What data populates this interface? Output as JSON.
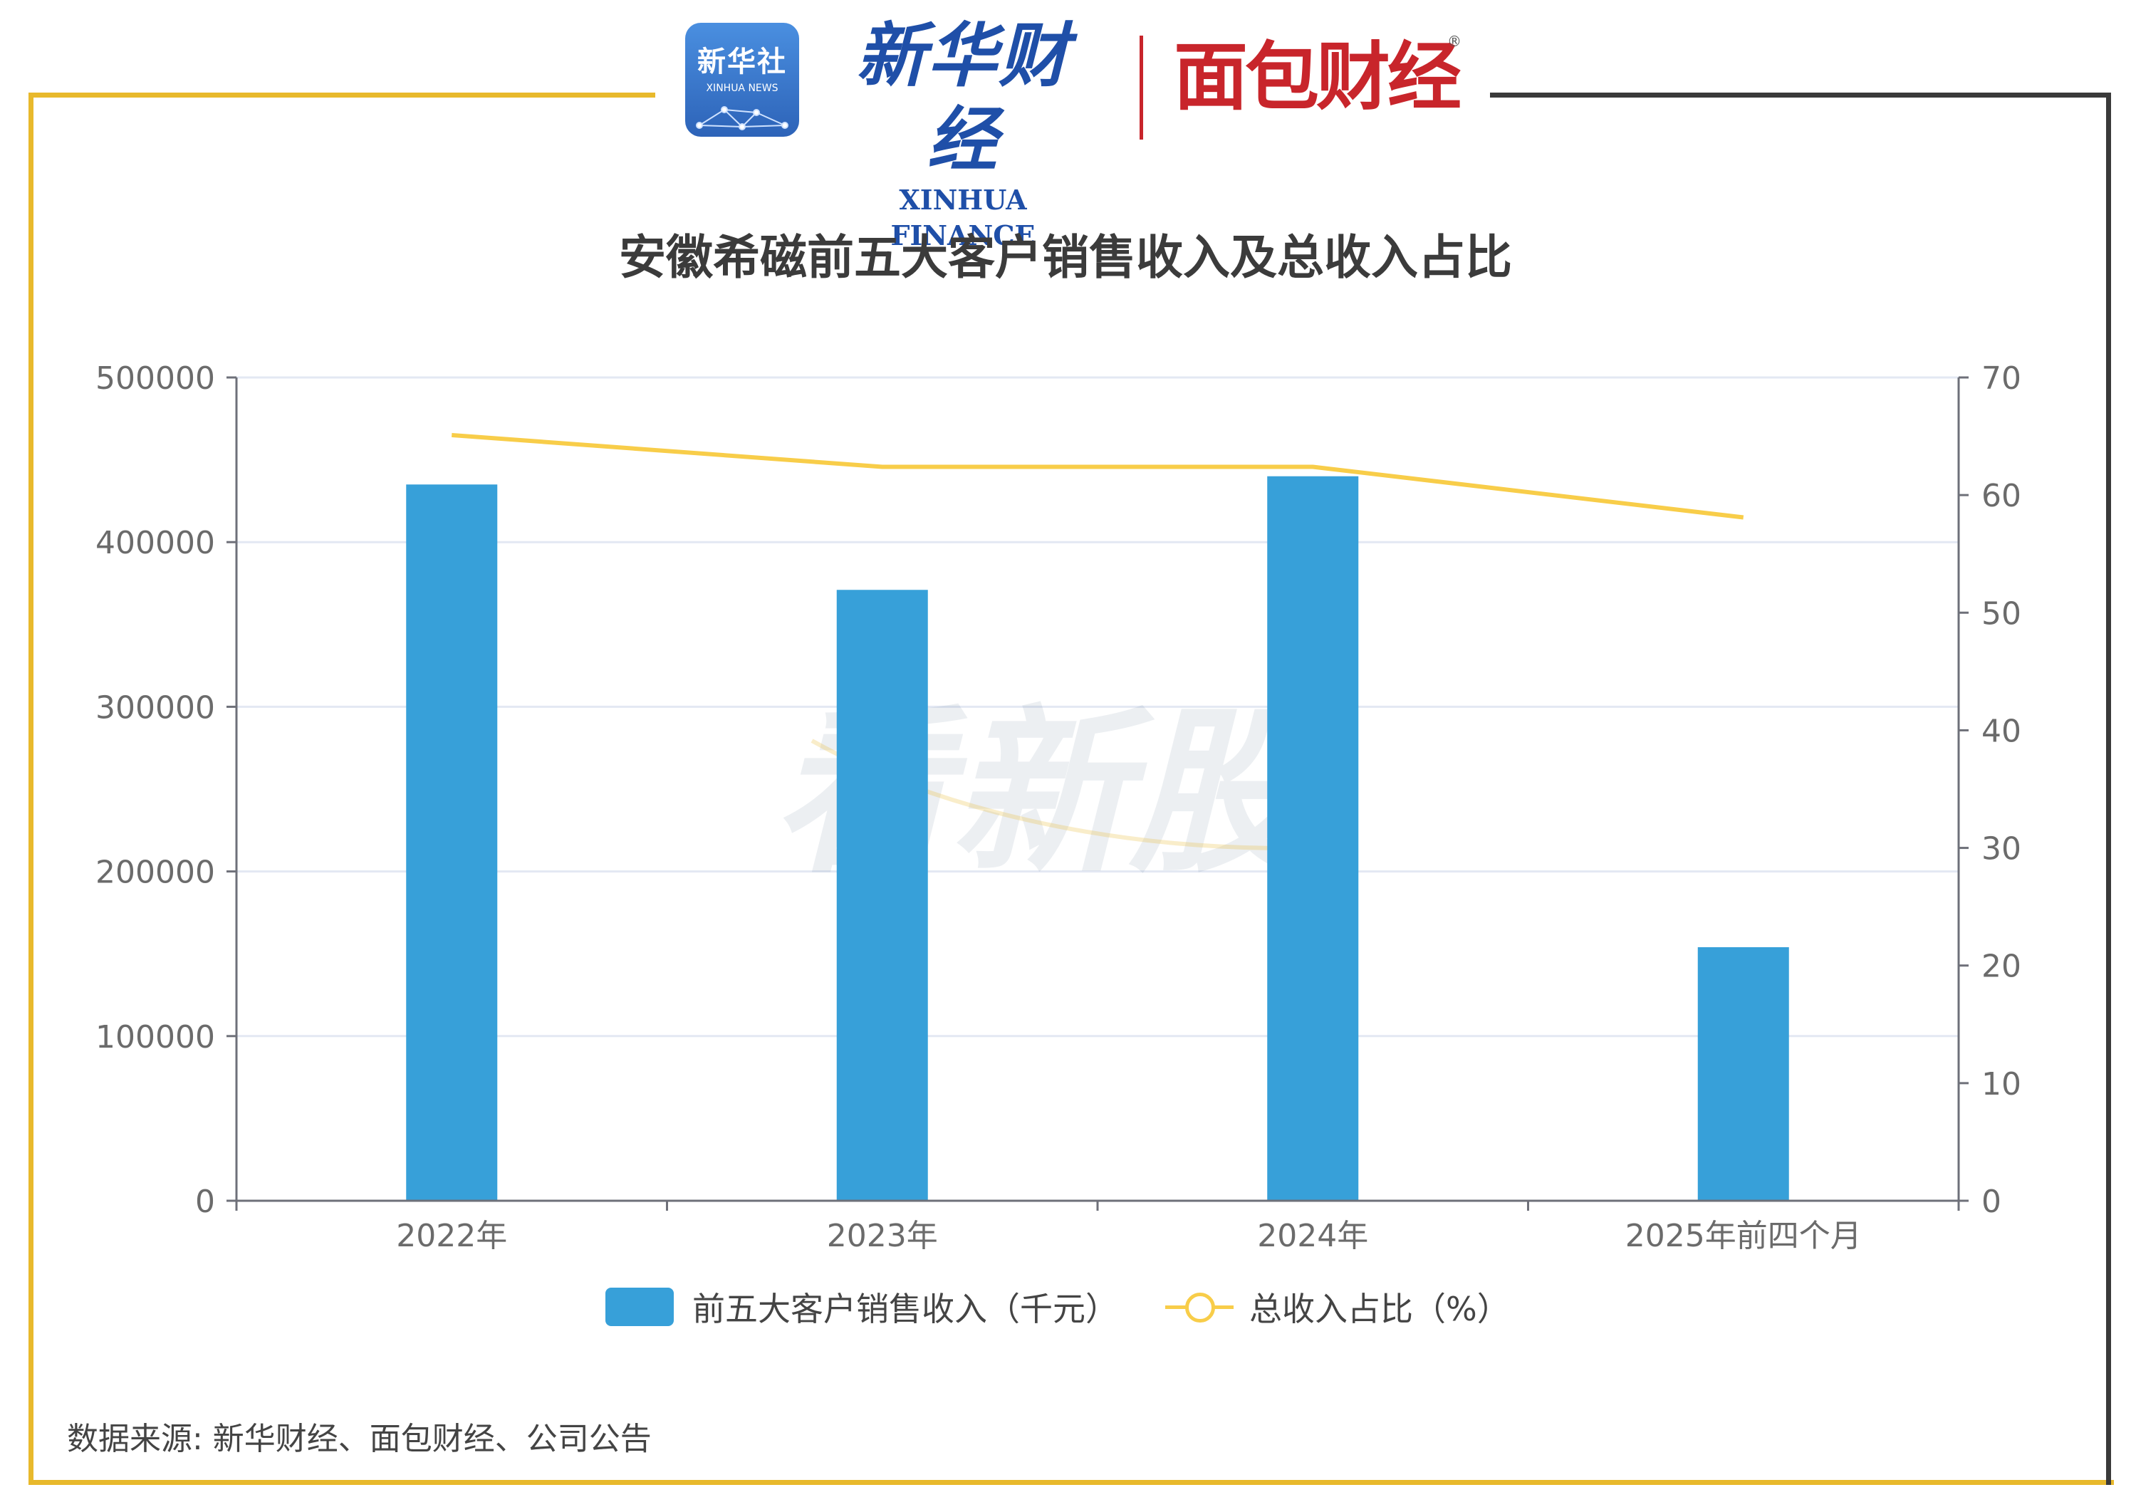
{
  "header": {
    "badge_cn": "新华社",
    "badge_en": "XINHUA NEWS",
    "brand_cn": "新华财经",
    "brand_en": "XINHUA FINANCE",
    "partner_cn": "面包财经",
    "partner_mark": "®"
  },
  "colors": {
    "frame_gold": "#e8b92c",
    "frame_dark": "#3a3a3a",
    "bar": "#37a0d9",
    "line": "#f8cd49",
    "grid": "#e3e8f3"
  },
  "chart_data": {
    "type": "bar",
    "title": "安徽希磁前五大客户销售收入及总收入占比",
    "categories": [
      "2022年",
      "2023年",
      "2024年",
      "2025年前四个月"
    ],
    "series": [
      {
        "name": "前五大客户销售收入（千元）",
        "type": "bar",
        "axis": "left",
        "values": [
          435000,
          371000,
          440000,
          154000
        ]
      },
      {
        "name": "总收入占比（%）",
        "type": "line",
        "axis": "right",
        "values": [
          65.1,
          62.4,
          62.4,
          58.1
        ]
      }
    ],
    "y_left": {
      "min": 0,
      "max": 500000,
      "ticks": [
        "0",
        "100000",
        "200000",
        "300000",
        "400000",
        "500000"
      ]
    },
    "y_right": {
      "min": 0,
      "max": 70,
      "ticks": [
        "0",
        "10",
        "20",
        "30",
        "40",
        "50",
        "60",
        "70"
      ]
    },
    "grid": true,
    "legend_position": "bottom"
  },
  "watermark": "看新股",
  "source": "数据来源: 新华财经、面包财经、公司公告"
}
